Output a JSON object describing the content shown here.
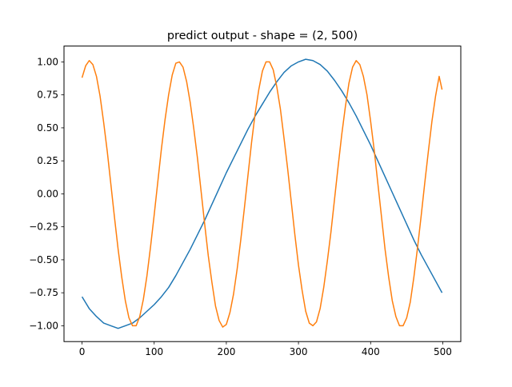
{
  "chart_data": {
    "type": "line",
    "title": "predict output - shape = (2, 500)",
    "xlabel": "",
    "ylabel": "",
    "xlim": [
      -25,
      525
    ],
    "ylim": [
      -1.12,
      1.12
    ],
    "x_ticks": [
      0,
      100,
      200,
      300,
      400,
      500
    ],
    "x_tick_labels": [
      "0",
      "100",
      "200",
      "300",
      "400",
      "500"
    ],
    "y_ticks": [
      1.0,
      0.75,
      0.5,
      0.25,
      0.0,
      -0.25,
      -0.5,
      -0.75,
      -1.0
    ],
    "y_tick_labels": [
      "1.00",
      "0.75",
      "0.50",
      "0.25",
      "0.00",
      "−0.25",
      "−0.50",
      "−0.75",
      "−1.00"
    ],
    "grid": false,
    "series": [
      {
        "color": "#1f77b4",
        "x": [
          0,
          10,
          20,
          30,
          40,
          50,
          60,
          70,
          80,
          90,
          100,
          110,
          120,
          130,
          140,
          150,
          160,
          170,
          180,
          190,
          200,
          210,
          220,
          230,
          240,
          250,
          260,
          270,
          280,
          290,
          300,
          310,
          320,
          330,
          340,
          350,
          360,
          370,
          380,
          390,
          400,
          410,
          420,
          430,
          440,
          450,
          460,
          470,
          480,
          490,
          499
        ],
        "values": [
          -0.78,
          -0.87,
          -0.93,
          -0.98,
          -1.0,
          -1.02,
          -1.0,
          -0.98,
          -0.94,
          -0.89,
          -0.84,
          -0.78,
          -0.71,
          -0.62,
          -0.52,
          -0.42,
          -0.31,
          -0.2,
          -0.08,
          0.04,
          0.16,
          0.27,
          0.38,
          0.49,
          0.59,
          0.68,
          0.77,
          0.85,
          0.92,
          0.97,
          1.0,
          1.02,
          1.01,
          0.98,
          0.93,
          0.86,
          0.78,
          0.69,
          0.59,
          0.48,
          0.37,
          0.25,
          0.13,
          0.01,
          -0.11,
          -0.23,
          -0.35,
          -0.46,
          -0.56,
          -0.66,
          -0.75
        ]
      },
      {
        "color": "#ff7f0e",
        "x": [
          0,
          5,
          10,
          15,
          20,
          25,
          30,
          35,
          40,
          45,
          50,
          55,
          60,
          65,
          70,
          75,
          80,
          85,
          90,
          95,
          100,
          105,
          110,
          115,
          120,
          125,
          130,
          135,
          140,
          145,
          150,
          155,
          160,
          165,
          170,
          175,
          180,
          185,
          190,
          195,
          200,
          205,
          210,
          215,
          220,
          225,
          230,
          235,
          240,
          245,
          250,
          255,
          260,
          265,
          270,
          275,
          280,
          285,
          290,
          295,
          300,
          305,
          310,
          315,
          320,
          325,
          330,
          335,
          340,
          345,
          350,
          355,
          360,
          365,
          370,
          375,
          380,
          385,
          390,
          395,
          400,
          405,
          410,
          415,
          420,
          425,
          430,
          435,
          440,
          445,
          450,
          455,
          460,
          465,
          470,
          475,
          480,
          485,
          490,
          495,
          499
        ],
        "values": [
          0.88,
          0.97,
          1.01,
          0.98,
          0.89,
          0.74,
          0.54,
          0.32,
          0.07,
          -0.18,
          -0.42,
          -0.63,
          -0.81,
          -0.94,
          -1.0,
          -1.0,
          -0.93,
          -0.8,
          -0.62,
          -0.4,
          -0.16,
          0.09,
          0.34,
          0.56,
          0.75,
          0.9,
          0.99,
          1.0,
          0.96,
          0.85,
          0.69,
          0.49,
          0.27,
          0.02,
          -0.23,
          -0.47,
          -0.67,
          -0.85,
          -0.96,
          -1.01,
          -0.99,
          -0.9,
          -0.76,
          -0.57,
          -0.35,
          -0.11,
          0.14,
          0.39,
          0.61,
          0.79,
          0.93,
          1.0,
          1.0,
          0.94,
          0.81,
          0.64,
          0.42,
          0.19,
          -0.06,
          -0.31,
          -0.54,
          -0.73,
          -0.89,
          -0.98,
          -1.0,
          -0.97,
          -0.87,
          -0.71,
          -0.51,
          -0.29,
          -0.04,
          0.21,
          0.45,
          0.66,
          0.84,
          0.96,
          1.01,
          0.98,
          0.89,
          0.75,
          0.55,
          0.33,
          0.08,
          -0.17,
          -0.42,
          -0.63,
          -0.81,
          -0.93,
          -1.0,
          -1.0,
          -0.94,
          -0.82,
          -0.63,
          -0.41,
          -0.17,
          0.08,
          0.32,
          0.55,
          0.74,
          0.89,
          0.79
        ]
      }
    ]
  }
}
